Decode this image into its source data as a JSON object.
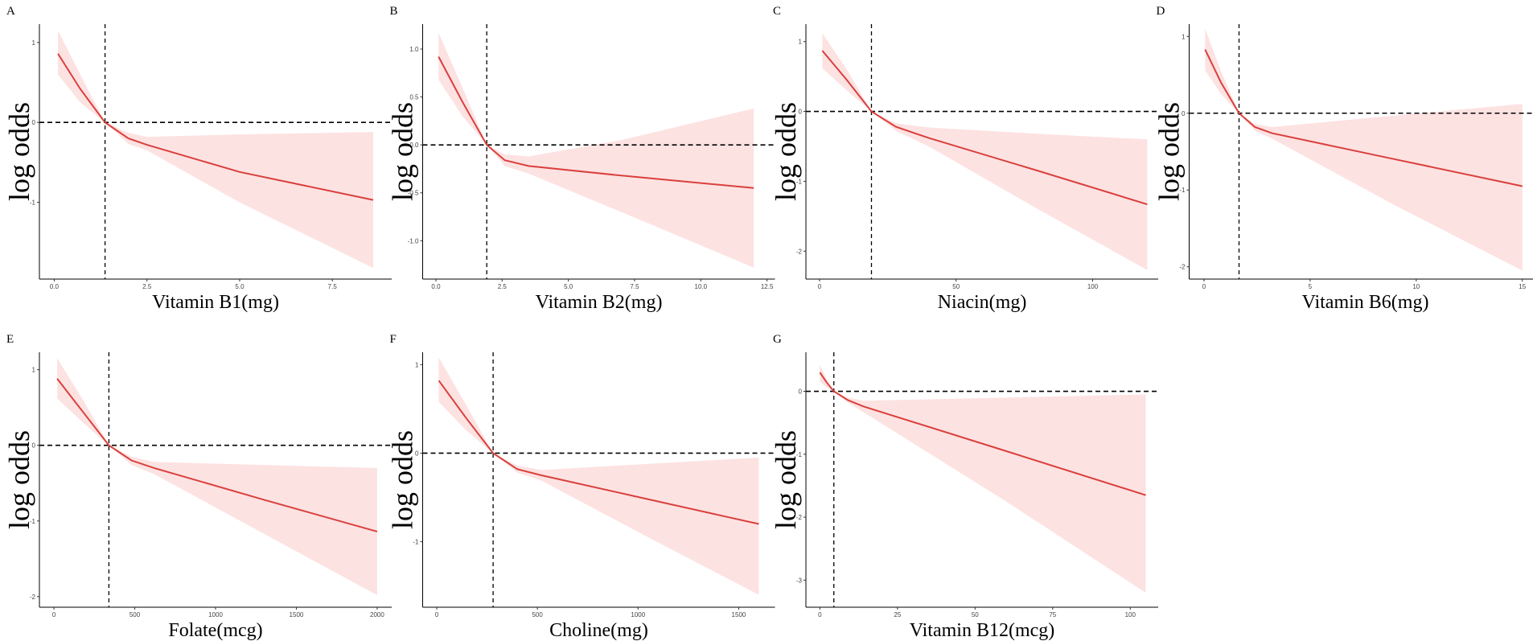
{
  "chart_data": [
    {
      "type": "line",
      "panel": "A",
      "x_label": "Vitamin B1(mg)",
      "y_label": "log odds",
      "color": "#d9403d",
      "band_color": "#fde2e2",
      "x": [
        0.1,
        0.7,
        1.37,
        2.0,
        2.5,
        5,
        8.6
      ],
      "values": [
        0.86,
        0.42,
        0,
        -0.2,
        -0.28,
        -0.62,
        -0.97
      ],
      "upper": [
        1.15,
        0.6,
        0,
        -0.13,
        -0.18,
        -0.15,
        -0.12
      ],
      "lower": [
        0.6,
        0.25,
        0,
        -0.27,
        -0.35,
        -1.0,
        -1.82
      ],
      "vline": 1.37,
      "hline": 0,
      "xlim": [
        -0.4,
        9.1
      ],
      "ylim": [
        -1.96,
        1.23
      ],
      "xticks": [
        {
          "value": 0,
          "label": "0.0"
        },
        2.5,
        {
          "value": 5,
          "label": "5.0"
        },
        7.5
      ],
      "yticks": [
        1,
        0,
        -1
      ]
    },
    {
      "type": "line",
      "panel": "B",
      "x_label": "Vitamin B2(mg)",
      "y_label": "log odds",
      "color": "#d9403d",
      "band_color": "#fde2e2",
      "x": [
        0.1,
        1,
        1.92,
        2.6,
        3.5,
        7,
        12
      ],
      "values": [
        0.92,
        0.45,
        0,
        -0.16,
        -0.22,
        -0.32,
        -0.45
      ],
      "upper": [
        1.17,
        0.6,
        0,
        -0.1,
        -0.12,
        0.05,
        0.38
      ],
      "lower": [
        0.68,
        0.3,
        0,
        -0.22,
        -0.3,
        -0.7,
        -1.28
      ],
      "vline": 1.92,
      "hline": 0,
      "xlim": [
        -0.5,
        12.8
      ],
      "ylim": [
        -1.4,
        1.26
      ],
      "xticks": [
        {
          "value": 0,
          "label": "0.0"
        },
        2.5,
        {
          "value": 5,
          "label": "5.0"
        },
        7.5,
        {
          "value": 10,
          "label": "10.0"
        },
        12.5
      ],
      "yticks": [
        {
          "value": 1,
          "label": "1.0"
        },
        0.5,
        {
          "value": 0,
          "label": "0.0"
        },
        -0.5,
        {
          "value": -1,
          "label": "-1.0"
        }
      ]
    },
    {
      "type": "line",
      "panel": "C",
      "x_label": "Niacin(mg)",
      "y_label": "log odds",
      "color": "#d9403d",
      "band_color": "#fde2e2",
      "x": [
        1,
        10,
        19,
        28,
        40,
        80,
        120
      ],
      "values": [
        0.87,
        0.45,
        0,
        -0.22,
        -0.38,
        -0.85,
        -1.33
      ],
      "upper": [
        1.12,
        0.6,
        0,
        -0.17,
        -0.23,
        -0.32,
        -0.4
      ],
      "lower": [
        0.62,
        0.3,
        0,
        -0.28,
        -0.5,
        -1.4,
        -2.27
      ],
      "vline": 19,
      "hline": 0,
      "xlim": [
        -5,
        124
      ],
      "ylim": [
        -2.4,
        1.25
      ],
      "xticks": [
        0,
        50,
        100
      ],
      "yticks": [
        1,
        0,
        -1,
        -2
      ]
    },
    {
      "type": "line",
      "panel": "D",
      "x_label": "Vitamin B6(mg)",
      "y_label": "log odds",
      "color": "#d9403d",
      "band_color": "#fde2e2",
      "x": [
        0.05,
        0.8,
        1.65,
        2.4,
        3.2,
        9,
        15
      ],
      "values": [
        0.83,
        0.4,
        0,
        -0.18,
        -0.26,
        -0.6,
        -0.95
      ],
      "upper": [
        1.1,
        0.55,
        0,
        -0.14,
        -0.18,
        -0.03,
        0.12
      ],
      "lower": [
        0.56,
        0.25,
        0,
        -0.23,
        -0.33,
        -1.2,
        -2.05
      ],
      "vline": 1.65,
      "hline": 0,
      "xlim": [
        -0.7,
        15.9
      ],
      "ylim": [
        -2.16,
        1.16
      ],
      "xticks": [
        0,
        5,
        10,
        15
      ],
      "yticks": [
        1,
        0,
        -1,
        -2
      ]
    },
    {
      "type": "line",
      "panel": "E",
      "x_label": "Folate(mcg)",
      "y_label": "log odds",
      "color": "#d9403d",
      "band_color": "#fde2e2",
      "x": [
        20,
        180,
        340,
        480,
        620,
        1300,
        2000
      ],
      "values": [
        0.88,
        0.44,
        0,
        -0.2,
        -0.3,
        -0.72,
        -1.14
      ],
      "upper": [
        1.15,
        0.6,
        0,
        -0.15,
        -0.22,
        -0.26,
        -0.3
      ],
      "lower": [
        0.62,
        0.3,
        0,
        -0.26,
        -0.38,
        -1.17,
        -1.98
      ],
      "vline": 340,
      "hline": 0,
      "xlim": [
        -90,
        2090
      ],
      "ylim": [
        -2.14,
        1.23
      ],
      "xticks": [
        0,
        500,
        1000,
        1500,
        2000
      ],
      "yticks": [
        1,
        0,
        -1,
        -2
      ]
    },
    {
      "type": "line",
      "panel": "F",
      "x_label": "Choline(mg)",
      "y_label": "log odds",
      "color": "#d9403d",
      "band_color": "#fde2e2",
      "x": [
        10,
        145,
        280,
        400,
        520,
        1050,
        1600
      ],
      "values": [
        0.82,
        0.4,
        0,
        -0.18,
        -0.25,
        -0.52,
        -0.8
      ],
      "upper": [
        1.08,
        0.55,
        0,
        -0.14,
        -0.19,
        -0.12,
        -0.05
      ],
      "lower": [
        0.58,
        0.26,
        0,
        -0.22,
        -0.31,
        -0.95,
        -1.6
      ],
      "vline": 280,
      "hline": 0,
      "xlim": [
        -70,
        1680
      ],
      "ylim": [
        -1.74,
        1.14
      ],
      "xticks": [
        0,
        500,
        1000,
        1500
      ],
      "yticks": [
        1,
        0,
        -1
      ]
    },
    {
      "type": "line",
      "panel": "G",
      "x_label": "Vitamin B12(mcg)",
      "y_label": "log odds",
      "color": "#d9403d",
      "band_color": "#fde2e2",
      "x": [
        0,
        2.2,
        4.5,
        9,
        14,
        60,
        105
      ],
      "values": [
        0.3,
        0.14,
        0,
        -0.14,
        -0.24,
        -0.95,
        -1.65
      ],
      "upper": [
        0.42,
        0.2,
        0,
        -0.1,
        -0.15,
        -0.1,
        -0.05
      ],
      "lower": [
        0.15,
        0.06,
        0,
        -0.18,
        -0.33,
        -1.75,
        -3.2
      ],
      "vline": 4.5,
      "hline": 0,
      "xlim": [
        -4.5,
        109
      ],
      "ylim": [
        -3.43,
        0.62
      ],
      "xticks": [
        0,
        25,
        50,
        75,
        100
      ],
      "yticks": [
        0,
        -1,
        -2,
        -3
      ]
    }
  ]
}
